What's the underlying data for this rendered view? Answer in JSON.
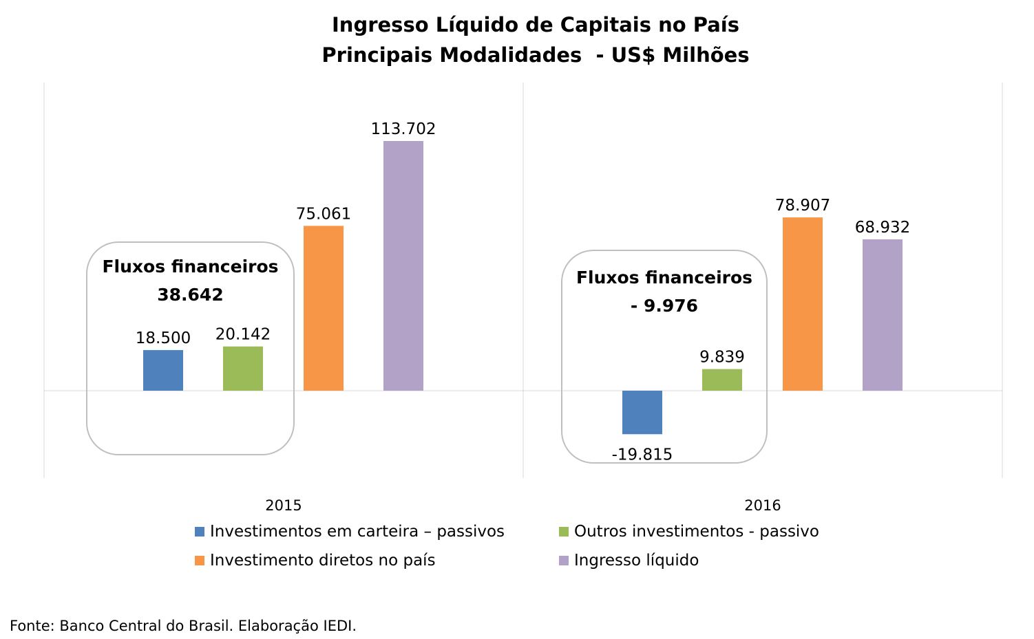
{
  "chart_data": {
    "type": "bar",
    "title": "Ingresso Líquido de Capitais no País",
    "subtitle": "Principais Modalidades  - US$ Milhões",
    "categories": [
      "2015",
      "2016"
    ],
    "series": [
      {
        "name": "Investimentos em carteira – passivos",
        "color": "#4F81BD",
        "values": [
          18500,
          -19815
        ],
        "labels": [
          "18.500",
          "-19.815"
        ]
      },
      {
        "name": "Outros investimentos - passivo",
        "color": "#9BBB59",
        "values": [
          20142,
          9839
        ],
        "labels": [
          "20.142",
          "9.839"
        ]
      },
      {
        "name": "Investimento diretos no país",
        "color": "#F79646",
        "values": [
          75061,
          78907
        ],
        "labels": [
          "75.061",
          "78.907"
        ]
      },
      {
        "name": "Ingresso líquido",
        "color": "#B2A2C7",
        "values": [
          113702,
          68932
        ],
        "labels": [
          "113.702",
          "68.932"
        ]
      }
    ],
    "annotations": [
      {
        "category": "2015",
        "line1": "Fluxos financeiros",
        "line2": "38.642"
      },
      {
        "category": "2016",
        "line1": "Fluxos financeiros",
        "line2": "- 9.976"
      }
    ],
    "legend_position": "bottom",
    "grid": false
  },
  "source": "Fonte: Banco Central do Brasil. Elaboração IEDI."
}
